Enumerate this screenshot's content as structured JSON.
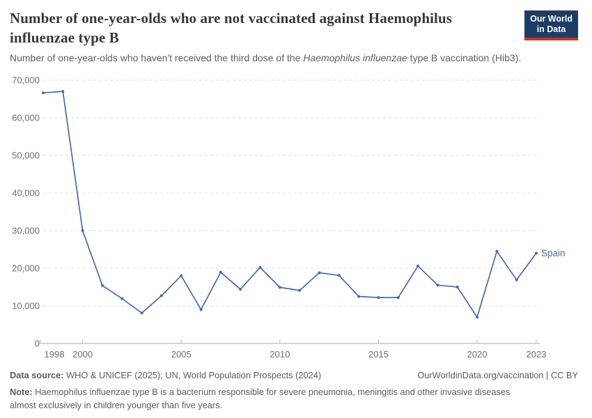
{
  "header": {
    "title": "Number of one-year-olds who are not vaccinated against Haemophilus influenzae type B",
    "logo": {
      "line1": "Our World",
      "line2": "in Data"
    }
  },
  "subtitle": {
    "prefix": "Number of one-year-olds who haven't received the third dose of the ",
    "italic": "Haemophilus influenzae",
    "suffix": " type B vaccination (Hib3)."
  },
  "chart_data": {
    "type": "line",
    "title": "Number of one-year-olds who are not vaccinated against Haemophilus influenzae type B",
    "series": [
      {
        "name": "Spain",
        "x": [
          1998,
          1999,
          2000,
          2001,
          2002,
          2003,
          2004,
          2005,
          2006,
          2007,
          2008,
          2009,
          2010,
          2011,
          2012,
          2013,
          2014,
          2015,
          2016,
          2017,
          2018,
          2019,
          2020,
          2021,
          2022,
          2023
        ],
        "values": [
          66600,
          67000,
          30000,
          15400,
          11900,
          8100,
          12700,
          18000,
          9000,
          18900,
          14400,
          20200,
          14900,
          14100,
          18800,
          18100,
          12500,
          12200,
          12200,
          20600,
          15500,
          15000,
          7000,
          24500,
          16900,
          24000
        ]
      }
    ],
    "xlabel": "",
    "ylabel": "",
    "xlim": [
      1998,
      2023
    ],
    "ylim": [
      0,
      70000
    ],
    "yticks": [
      0,
      10000,
      20000,
      30000,
      40000,
      50000,
      60000,
      70000
    ],
    "ytick_labels": [
      "0",
      "10,000",
      "20,000",
      "30,000",
      "40,000",
      "50,000",
      "60,000",
      "70,000"
    ],
    "xticks": [
      1998,
      2000,
      2005,
      2010,
      2015,
      2020,
      2023
    ],
    "grid": "horizontal-dashed",
    "legend_position": "end-of-line",
    "end_label": "Spain"
  },
  "colors": {
    "line": "#4a69a5",
    "grid": "#dedede",
    "axis": "#bcbcbc",
    "axis_text": "#6c6c6c",
    "logo_navy": "#1d3d63",
    "logo_red": "#d4301f"
  },
  "footer": {
    "data_source_label": "Data source:",
    "data_source_text": " WHO & UNICEF (2025); UN, World Population Prospects (2024)",
    "link": "OurWorldinData.org/vaccination | CC BY",
    "note_label": "Note:",
    "note_text": " Haemophilus influenzae type B is a bacterium responsible for severe pneumonia, meningitis and other invasive diseases almost exclusively in children younger than five years."
  }
}
